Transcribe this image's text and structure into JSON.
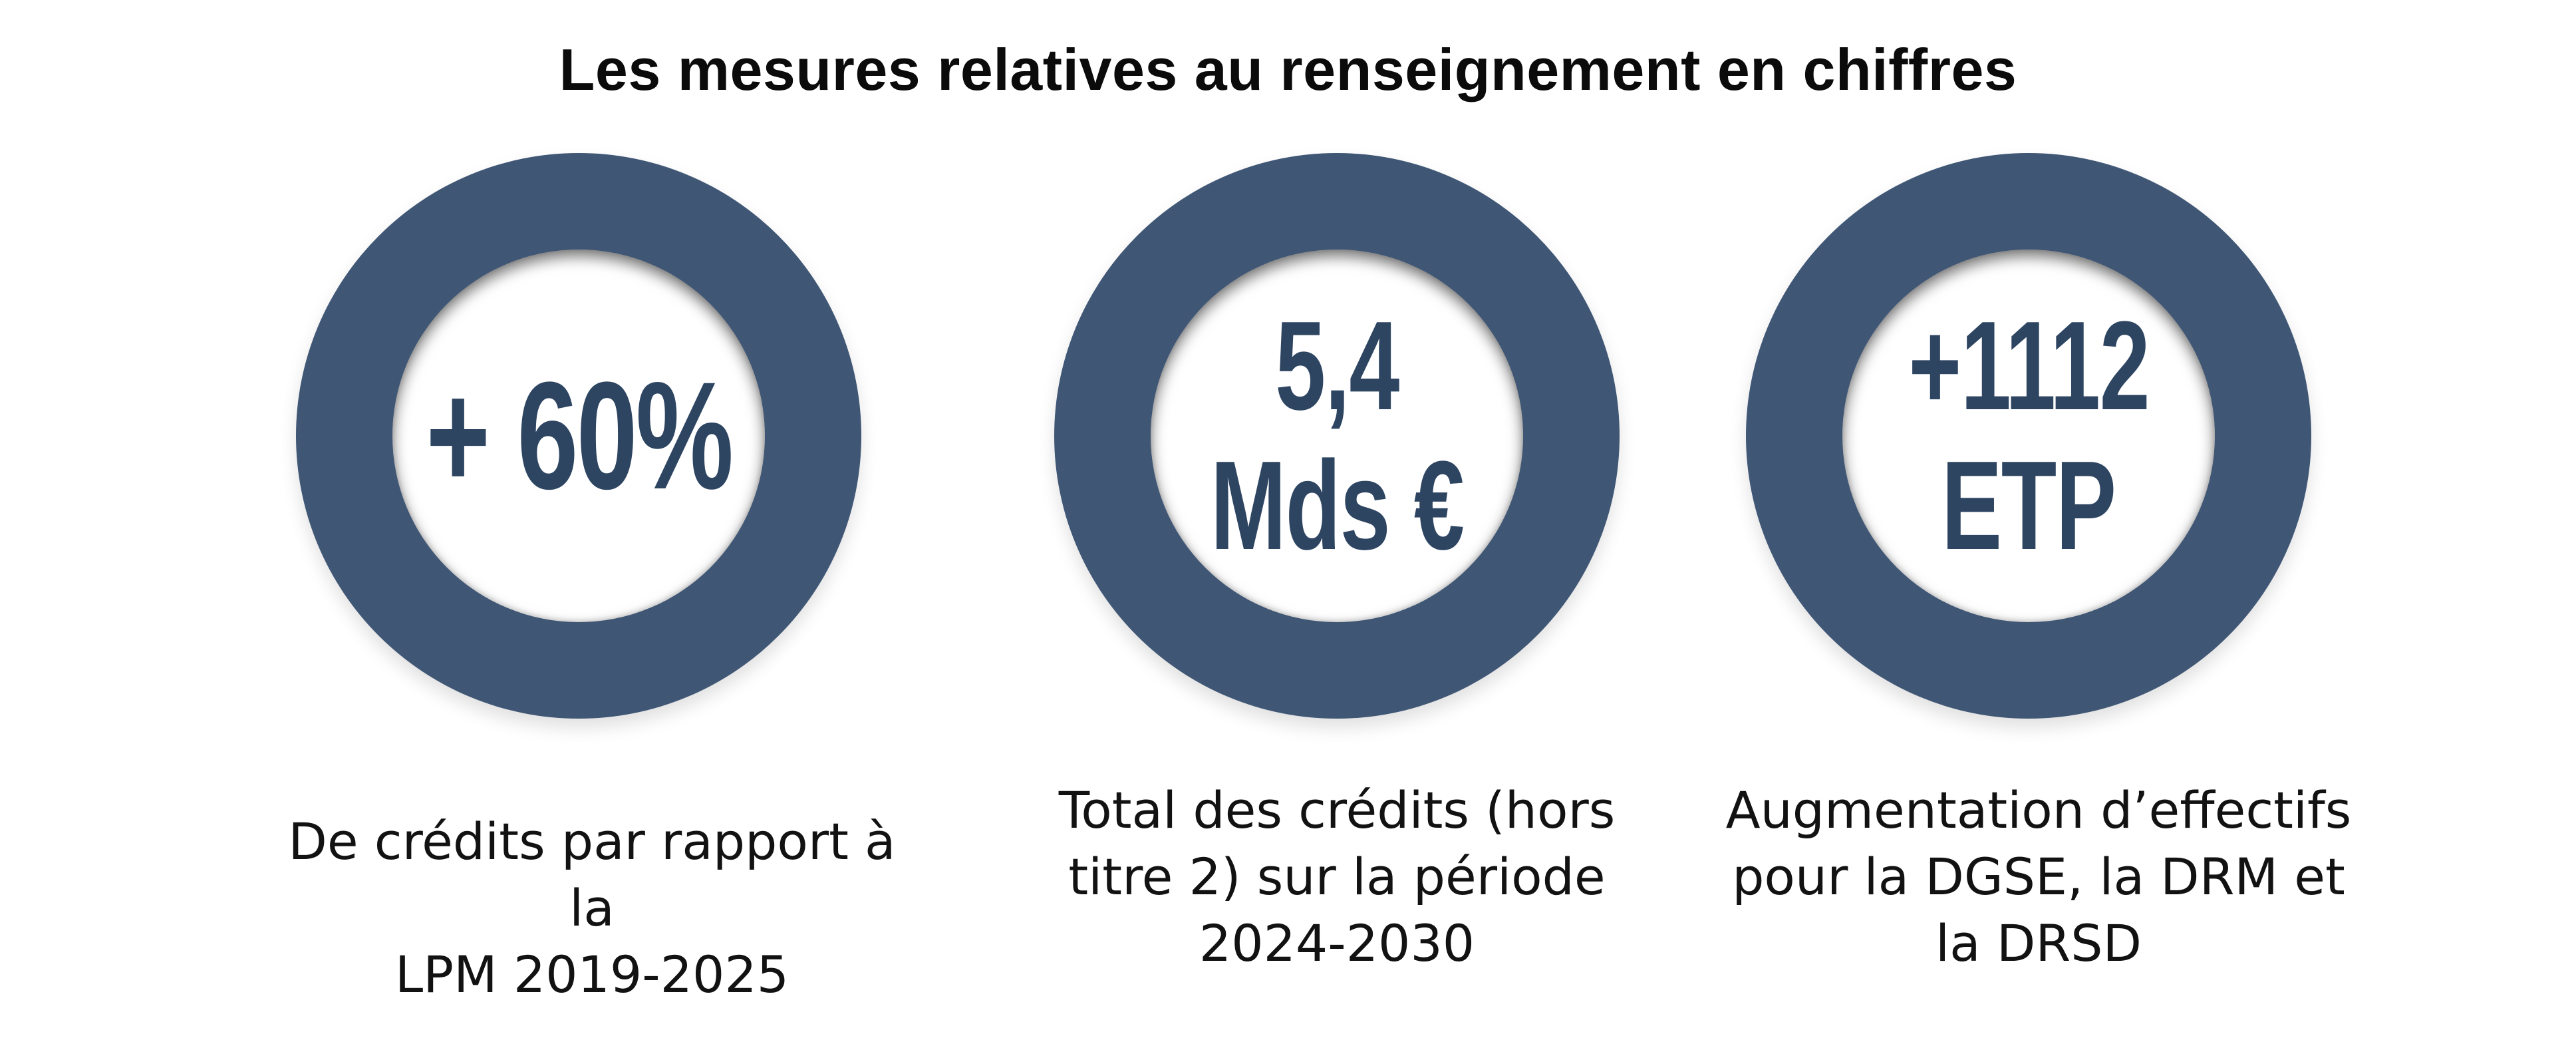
{
  "title": "Les mesures relatives au renseignement en chiffres",
  "colors": {
    "ring": "#3f5675",
    "figure_text": "#2e4562",
    "caption_text": "#121212"
  },
  "stats": [
    {
      "figure": "+ 60%",
      "caption_lines": [
        "De crédits par rapport à la",
        "LPM 2019-2025"
      ]
    },
    {
      "figure_lines": [
        "5,4",
        "Mds €"
      ],
      "caption_lines": [
        "Total des crédits (hors",
        "titre 2) sur la période",
        "2024-2030"
      ]
    },
    {
      "figure_lines": [
        "+1112",
        "ETP"
      ],
      "caption_lines": [
        "Augmentation d’effectifs",
        "pour la DGSE, la DRM et",
        "la DRSD"
      ]
    }
  ]
}
